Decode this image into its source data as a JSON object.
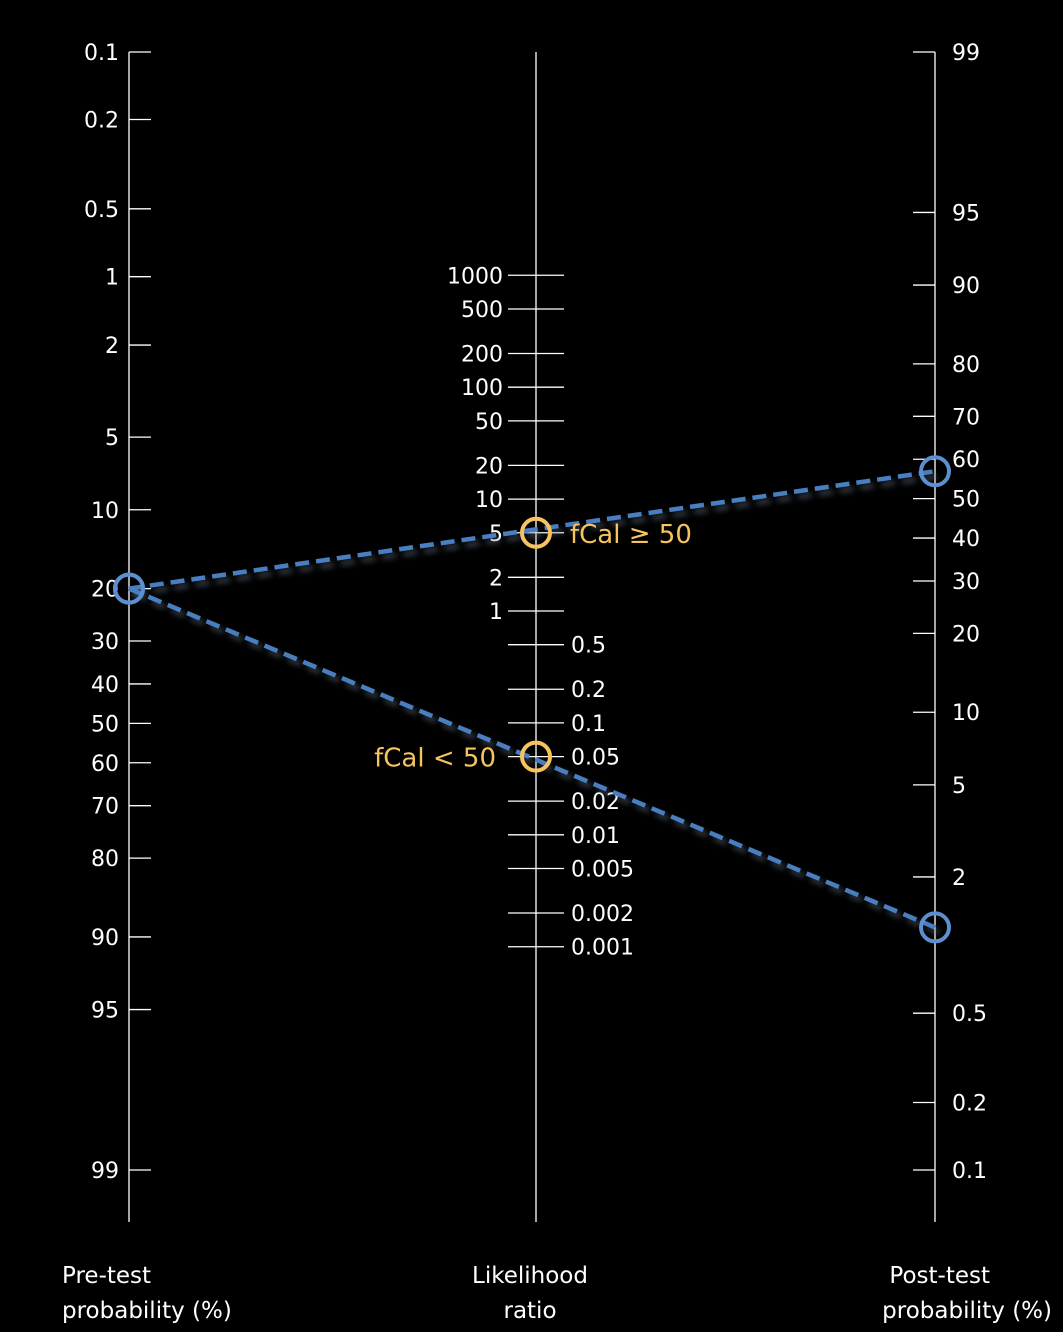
{
  "chart_data": {
    "type": "nomogram",
    "title": "",
    "axes": [
      {
        "id": "pretest",
        "title_lines": [
          "Pre-test",
          "probability (%)"
        ],
        "ticks": [
          "0.1",
          "0.2",
          "0.5",
          "1",
          "2",
          "5",
          "10",
          "20",
          "30",
          "40",
          "50",
          "60",
          "70",
          "80",
          "90",
          "95",
          "99"
        ]
      },
      {
        "id": "lr",
        "title_lines": [
          "Likelihood",
          "ratio"
        ],
        "ticks": [
          "1000",
          "500",
          "200",
          "100",
          "50",
          "20",
          "10",
          "5",
          "2",
          "1",
          "0.5",
          "0.2",
          "0.1",
          "0.05",
          "0.02",
          "0.01",
          "0.005",
          "0.002",
          "0.001"
        ]
      },
      {
        "id": "posttest",
        "title_lines": [
          "Post-test",
          "probability (%)"
        ],
        "ticks": [
          "99",
          "95",
          "90",
          "80",
          "70",
          "60",
          "50",
          "40",
          "30",
          "20",
          "10",
          "5",
          "2",
          "0.5",
          "0.2",
          "0.1"
        ]
      }
    ],
    "series": [
      {
        "name": "fCal ≥ 50",
        "pretest_probability": 20,
        "likelihood_ratio": 5,
        "posttest_probability": 57
      },
      {
        "name": "fCal < 50",
        "pretest_probability": 20,
        "likelihood_ratio": 0.05,
        "posttest_probability": 1.2
      }
    ],
    "colors": {
      "background": "#000000",
      "axis": "#ffffff",
      "line": "#4a7fc1",
      "endpoint_marker": "#5b8fd0",
      "lr_marker": "#f7c35f",
      "annotation": "#f7c35f"
    }
  }
}
